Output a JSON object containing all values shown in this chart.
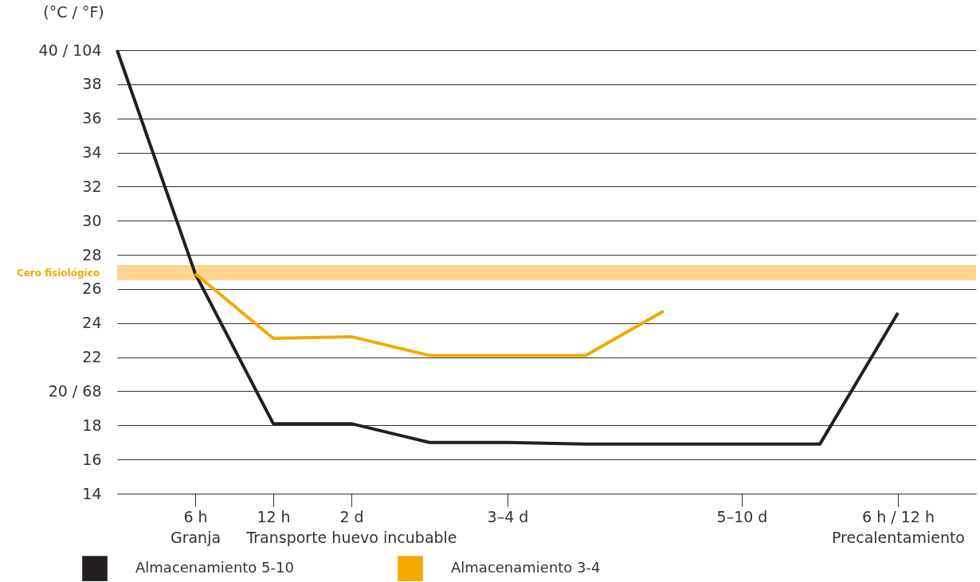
{
  "chart_data": {
    "type": "line",
    "ylabel": "(°C / °F)",
    "categories": [
      null,
      "6 h\nGranja",
      "12 h",
      "2 d\nTransporte huevo incubable",
      null,
      "3–4 d",
      null,
      null,
      "5–10 d",
      null,
      "6 h / 12 h\nPrecalentamiento",
      null
    ],
    "ylim": [
      14,
      40
    ],
    "yticks": [
      14,
      16,
      18,
      {
        "value": 20,
        "label": "20 / 68"
      },
      22,
      24,
      26,
      28,
      30,
      32,
      34,
      36,
      38,
      {
        "value": 40,
        "label": "40 / 104"
      }
    ],
    "series": [
      {
        "name": "Almacenamiento 5-10",
        "color": "#231f20",
        "values": [
          40,
          26.9,
          18.1,
          18.1,
          17.0,
          17.0,
          16.9,
          16.9,
          16.9,
          16.9,
          24.6,
          null
        ]
      },
      {
        "name": "Almacenamiento 3-4",
        "color": "#f5a800",
        "values": [
          null,
          26.9,
          23.1,
          23.2,
          22.1,
          22.1,
          22.1,
          24.7,
          null,
          null,
          null,
          null
        ]
      }
    ],
    "bands": [
      {
        "axis": "y",
        "from": 26.5,
        "to": 27.4,
        "label": "Cero fisiológico",
        "color": "#fdd58e"
      }
    ],
    "grid": "y",
    "legend": "bottom left"
  }
}
